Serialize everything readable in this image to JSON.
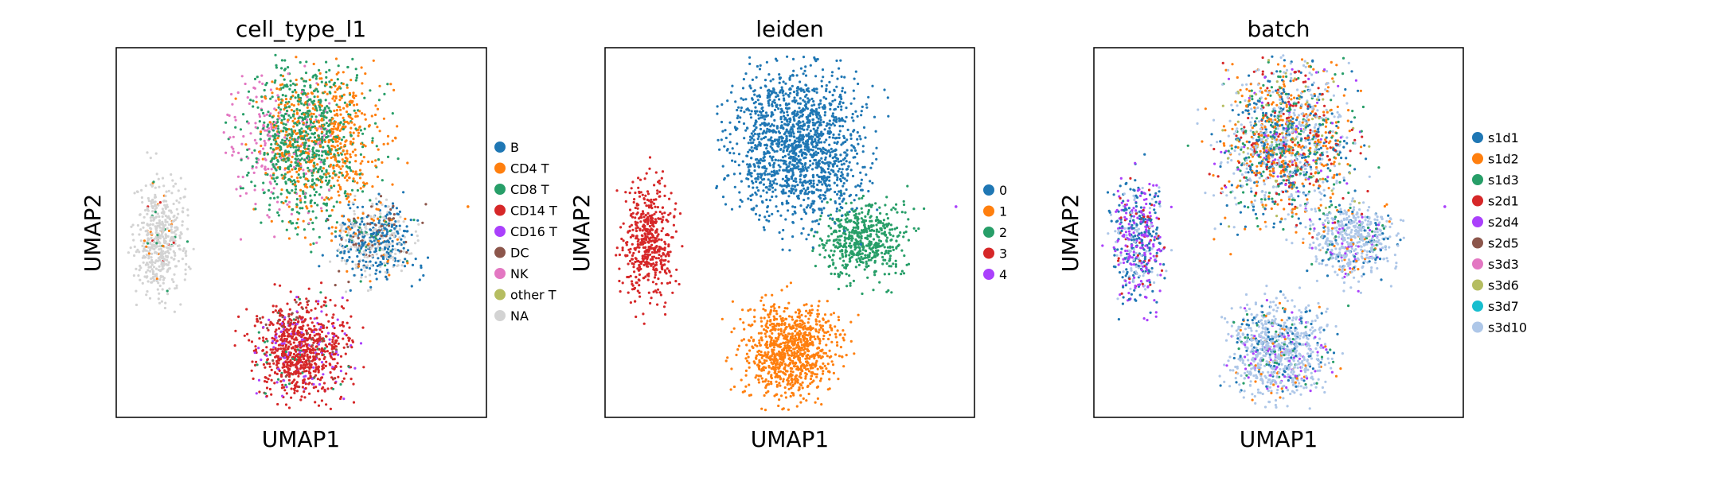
{
  "chart_data": [
    {
      "type": "scatter",
      "title": "cell_type_l1",
      "xlabel": "UMAP1",
      "ylabel": "UMAP2",
      "grid": false,
      "legend_position": "right",
      "categories": [
        {
          "name": "B",
          "color": "#1f77b4"
        },
        {
          "name": "CD4 T",
          "color": "#ff7f0e"
        },
        {
          "name": "CD8 T",
          "color": "#279e68"
        },
        {
          "name": "CD14 T",
          "color": "#d62728"
        },
        {
          "name": "CD16 T",
          "color": "#aa40fc"
        },
        {
          "name": "DC",
          "color": "#8c564b"
        },
        {
          "name": "NK",
          "color": "#e377c2"
        },
        {
          "name": "other T",
          "color": "#b5bd61"
        },
        {
          "name": "NA",
          "color": "#d3d3d3"
        }
      ]
    },
    {
      "type": "scatter",
      "title": "leiden",
      "xlabel": "UMAP1",
      "ylabel": "UMAP2",
      "grid": false,
      "legend_position": "right",
      "categories": [
        {
          "name": "0",
          "color": "#1f77b4"
        },
        {
          "name": "1",
          "color": "#ff7f0e"
        },
        {
          "name": "2",
          "color": "#279e68"
        },
        {
          "name": "3",
          "color": "#d62728"
        },
        {
          "name": "4",
          "color": "#aa40fc"
        }
      ]
    },
    {
      "type": "scatter",
      "title": "batch",
      "xlabel": "UMAP1",
      "ylabel": "UMAP2",
      "grid": false,
      "legend_position": "right",
      "categories": [
        {
          "name": "s1d1",
          "color": "#1f77b4"
        },
        {
          "name": "s1d2",
          "color": "#ff7f0e"
        },
        {
          "name": "s1d3",
          "color": "#279e68"
        },
        {
          "name": "s2d1",
          "color": "#d62728"
        },
        {
          "name": "s2d4",
          "color": "#aa40fc"
        },
        {
          "name": "s2d5",
          "color": "#8c564b"
        },
        {
          "name": "s3d3",
          "color": "#e377c2"
        },
        {
          "name": "s3d6",
          "color": "#b5bd61"
        },
        {
          "name": "s3d7",
          "color": "#17becf"
        },
        {
          "name": "s3d10",
          "color": "#aec7e8"
        }
      ]
    }
  ]
}
